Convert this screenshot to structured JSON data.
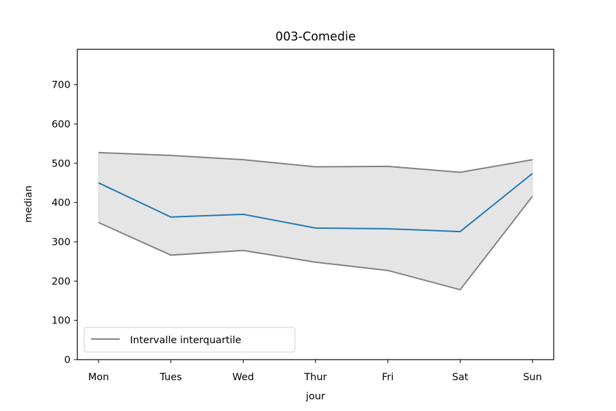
{
  "chart_data": {
    "type": "line",
    "title": "003-Comedie",
    "xlabel": "jour",
    "ylabel": "median",
    "categories": [
      "Mon",
      "Tues",
      "Wed",
      "Thur",
      "Fri",
      "Sat",
      "Sun"
    ],
    "ylim": [
      0,
      790
    ],
    "yticks": [
      0,
      100,
      200,
      300,
      400,
      500,
      600,
      700
    ],
    "series": [
      {
        "name": "",
        "role": "median",
        "color": "#1f77b4",
        "values": [
          450,
          363,
          370,
          335,
          333,
          326,
          474
        ]
      },
      {
        "name": "",
        "role": "q75",
        "color": "#808080",
        "values": [
          527,
          520,
          509,
          491,
          492,
          477,
          509
        ]
      },
      {
        "name": "",
        "role": "q25",
        "color": "#808080",
        "values": [
          349,
          266,
          278,
          248,
          227,
          178,
          416
        ]
      }
    ],
    "band": {
      "fill": "#e5e5e5",
      "between": [
        "q25",
        "q75"
      ]
    },
    "legend": {
      "entries": [
        "Intervalle interquartile"
      ],
      "color": "#808080",
      "placement": "lower-left"
    },
    "grid": false
  }
}
